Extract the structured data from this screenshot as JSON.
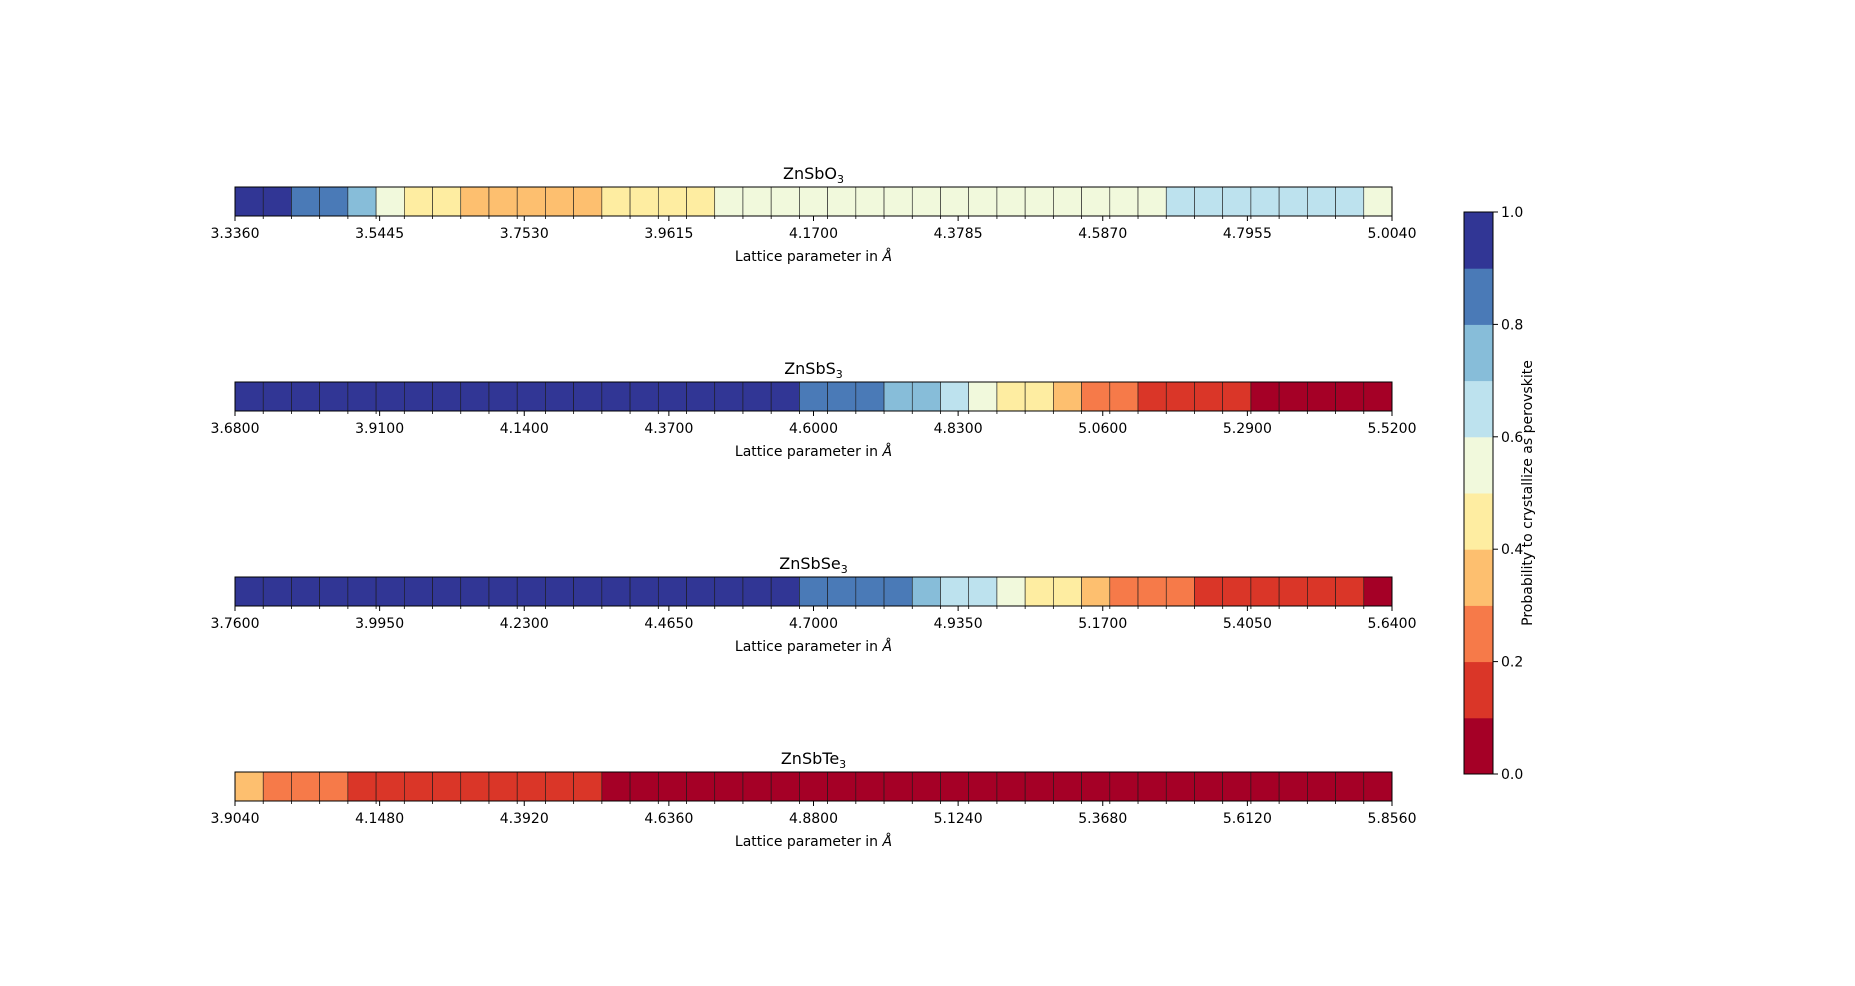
{
  "chart_data": [
    {
      "type": "heatmap",
      "title": "ZnSbO",
      "title_subscript": "3",
      "xlabel": "Lattice parameter in ",
      "xlabel_unit": "Å",
      "tick_labels": [
        "3.3360",
        "3.5445",
        "3.7530",
        "3.9615",
        "4.1700",
        "4.3785",
        "4.5870",
        "4.7955",
        "5.0040"
      ],
      "xlim": [
        3.336,
        5.004
      ],
      "values": [
        0.95,
        0.95,
        0.85,
        0.85,
        0.75,
        0.55,
        0.45,
        0.45,
        0.35,
        0.35,
        0.35,
        0.35,
        0.35,
        0.45,
        0.45,
        0.45,
        0.45,
        0.55,
        0.55,
        0.55,
        0.55,
        0.55,
        0.55,
        0.55,
        0.55,
        0.55,
        0.55,
        0.55,
        0.55,
        0.55,
        0.55,
        0.55,
        0.55,
        0.65,
        0.65,
        0.65,
        0.65,
        0.65,
        0.65,
        0.65,
        0.55
      ]
    },
    {
      "type": "heatmap",
      "title": "ZnSbS",
      "title_subscript": "3",
      "xlabel": "Lattice parameter in ",
      "xlabel_unit": "Å",
      "tick_labels": [
        "3.6800",
        "3.9100",
        "4.1400",
        "4.3700",
        "4.6000",
        "4.8300",
        "5.0600",
        "5.2900",
        "5.5200"
      ],
      "xlim": [
        3.68,
        5.52
      ],
      "values": [
        0.95,
        0.95,
        0.95,
        0.95,
        0.95,
        0.95,
        0.95,
        0.95,
        0.95,
        0.95,
        0.95,
        0.95,
        0.95,
        0.95,
        0.95,
        0.95,
        0.95,
        0.95,
        0.95,
        0.95,
        0.85,
        0.85,
        0.85,
        0.75,
        0.75,
        0.65,
        0.55,
        0.45,
        0.45,
        0.35,
        0.25,
        0.25,
        0.15,
        0.15,
        0.15,
        0.15,
        0.05,
        0.05,
        0.05,
        0.05,
        0.05
      ]
    },
    {
      "type": "heatmap",
      "title": "ZnSbSe",
      "title_subscript": "3",
      "xlabel": "Lattice parameter in ",
      "xlabel_unit": "Å",
      "tick_labels": [
        "3.7600",
        "3.9950",
        "4.2300",
        "4.4650",
        "4.7000",
        "4.9350",
        "5.1700",
        "5.4050",
        "5.6400"
      ],
      "xlim": [
        3.76,
        5.64
      ],
      "values": [
        0.95,
        0.95,
        0.95,
        0.95,
        0.95,
        0.95,
        0.95,
        0.95,
        0.95,
        0.95,
        0.95,
        0.95,
        0.95,
        0.95,
        0.95,
        0.95,
        0.95,
        0.95,
        0.95,
        0.95,
        0.85,
        0.85,
        0.85,
        0.85,
        0.75,
        0.65,
        0.65,
        0.55,
        0.45,
        0.45,
        0.35,
        0.25,
        0.25,
        0.25,
        0.15,
        0.15,
        0.15,
        0.15,
        0.15,
        0.15,
        0.05
      ]
    },
    {
      "type": "heatmap",
      "title": "ZnSbTe",
      "title_subscript": "3",
      "xlabel": "Lattice parameter in ",
      "xlabel_unit": "Å",
      "tick_labels": [
        "3.9040",
        "4.1480",
        "4.3920",
        "4.6360",
        "4.8800",
        "5.1240",
        "5.3680",
        "5.6120",
        "5.8560"
      ],
      "xlim": [
        3.904,
        5.856
      ],
      "values": [
        0.35,
        0.25,
        0.25,
        0.25,
        0.15,
        0.15,
        0.15,
        0.15,
        0.15,
        0.15,
        0.15,
        0.15,
        0.15,
        0.05,
        0.05,
        0.05,
        0.05,
        0.05,
        0.05,
        0.05,
        0.05,
        0.05,
        0.05,
        0.05,
        0.05,
        0.05,
        0.05,
        0.05,
        0.05,
        0.05,
        0.05,
        0.05,
        0.05,
        0.05,
        0.05,
        0.05,
        0.05,
        0.05,
        0.05,
        0.05,
        0.05
      ]
    }
  ],
  "colorbar": {
    "label": "Probability to crystallize as perovskite",
    "range": [
      0,
      1
    ],
    "tick_labels": [
      "0.0",
      "0.2",
      "0.4",
      "0.6",
      "0.8",
      "1.0"
    ],
    "colors": [
      "#a50026",
      "#d73027",
      "#f46d43",
      "#fdae61",
      "#fee090",
      "#e0f3f8",
      "#abd9e9",
      "#74add1",
      "#4575b4",
      "#313695"
    ],
    "bin_colors": [
      "#a50026",
      "#da3628",
      "#f67a49",
      "#fdbf6f",
      "#feeda1",
      "#f1f9dc",
      "#bde2ee",
      "#87bdd9",
      "#4a7ab7",
      "#313695"
    ]
  }
}
